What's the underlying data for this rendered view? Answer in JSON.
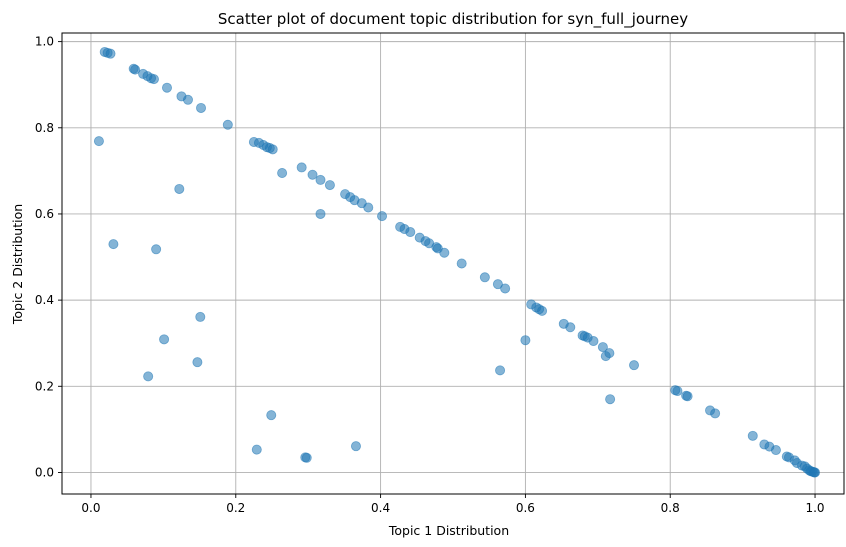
{
  "chart_data": {
    "type": "scatter",
    "title": "Scatter plot of document topic distribution for syn_full_journey",
    "xlabel": "Topic 1 Distribution",
    "ylabel": "Topic 2 Distribution",
    "xlim": [
      -0.04,
      1.04
    ],
    "ylim": [
      -0.05,
      1.02
    ],
    "xticks": [
      0.0,
      0.2,
      0.4,
      0.6,
      0.8,
      1.0
    ],
    "yticks": [
      0.0,
      0.2,
      0.4,
      0.6,
      0.8,
      1.0
    ],
    "xtick_labels": [
      "0.0",
      "0.2",
      "0.4",
      "0.6",
      "0.8",
      "1.0"
    ],
    "ytick_labels": [
      "0.0",
      "0.2",
      "0.4",
      "0.6",
      "0.8",
      "1.0"
    ],
    "grid": true,
    "marker_color": "#1f77b4",
    "marker_alpha": 0.55,
    "points": [
      [
        0.019,
        0.976
      ],
      [
        0.023,
        0.974
      ],
      [
        0.027,
        0.972
      ],
      [
        0.059,
        0.937
      ],
      [
        0.061,
        0.935
      ],
      [
        0.072,
        0.925
      ],
      [
        0.078,
        0.92
      ],
      [
        0.083,
        0.915
      ],
      [
        0.087,
        0.913
      ],
      [
        0.105,
        0.893
      ],
      [
        0.125,
        0.873
      ],
      [
        0.134,
        0.865
      ],
      [
        0.152,
        0.846
      ],
      [
        0.189,
        0.807
      ],
      [
        0.225,
        0.767
      ],
      [
        0.232,
        0.765
      ],
      [
        0.238,
        0.76
      ],
      [
        0.243,
        0.755
      ],
      [
        0.247,
        0.753
      ],
      [
        0.251,
        0.75
      ],
      [
        0.264,
        0.695
      ],
      [
        0.291,
        0.708
      ],
      [
        0.306,
        0.691
      ],
      [
        0.317,
        0.679
      ],
      [
        0.33,
        0.667
      ],
      [
        0.351,
        0.646
      ],
      [
        0.358,
        0.639
      ],
      [
        0.364,
        0.632
      ],
      [
        0.374,
        0.625
      ],
      [
        0.383,
        0.615
      ],
      [
        0.402,
        0.595
      ],
      [
        0.317,
        0.6
      ],
      [
        0.427,
        0.57
      ],
      [
        0.433,
        0.565
      ],
      [
        0.441,
        0.558
      ],
      [
        0.454,
        0.545
      ],
      [
        0.462,
        0.537
      ],
      [
        0.467,
        0.532
      ],
      [
        0.477,
        0.523
      ],
      [
        0.479,
        0.52
      ],
      [
        0.488,
        0.51
      ],
      [
        0.512,
        0.485
      ],
      [
        0.544,
        0.453
      ],
      [
        0.562,
        0.437
      ],
      [
        0.572,
        0.427
      ],
      [
        0.608,
        0.39
      ],
      [
        0.615,
        0.383
      ],
      [
        0.619,
        0.379
      ],
      [
        0.623,
        0.375
      ],
      [
        0.653,
        0.345
      ],
      [
        0.662,
        0.337
      ],
      [
        0.679,
        0.318
      ],
      [
        0.682,
        0.316
      ],
      [
        0.686,
        0.313
      ],
      [
        0.694,
        0.305
      ],
      [
        0.707,
        0.291
      ],
      [
        0.711,
        0.27
      ],
      [
        0.716,
        0.277
      ],
      [
        0.75,
        0.249
      ],
      [
        0.807,
        0.191
      ],
      [
        0.81,
        0.189
      ],
      [
        0.822,
        0.178
      ],
      [
        0.824,
        0.177
      ],
      [
        0.855,
        0.144
      ],
      [
        0.862,
        0.137
      ],
      [
        0.914,
        0.085
      ],
      [
        0.93,
        0.065
      ],
      [
        0.937,
        0.06
      ],
      [
        0.946,
        0.052
      ],
      [
        0.961,
        0.037
      ],
      [
        0.964,
        0.035
      ],
      [
        0.972,
        0.028
      ],
      [
        0.975,
        0.022
      ],
      [
        0.982,
        0.016
      ],
      [
        0.986,
        0.014
      ],
      [
        0.989,
        0.009
      ],
      [
        0.992,
        0.005
      ],
      [
        0.994,
        0.003
      ],
      [
        0.996,
        0.002
      ],
      [
        0.998,
        0.001
      ],
      [
        0.999,
        0.0
      ],
      [
        1.0,
        0.0
      ],
      [
        0.011,
        0.769
      ],
      [
        0.122,
        0.658
      ],
      [
        0.031,
        0.53
      ],
      [
        0.09,
        0.518
      ],
      [
        0.151,
        0.361
      ],
      [
        0.101,
        0.309
      ],
      [
        0.147,
        0.256
      ],
      [
        0.079,
        0.223
      ],
      [
        0.249,
        0.133
      ],
      [
        0.229,
        0.053
      ],
      [
        0.296,
        0.035
      ],
      [
        0.298,
        0.034
      ],
      [
        0.366,
        0.061
      ],
      [
        0.6,
        0.307
      ],
      [
        0.565,
        0.237
      ],
      [
        0.717,
        0.17
      ]
    ]
  }
}
